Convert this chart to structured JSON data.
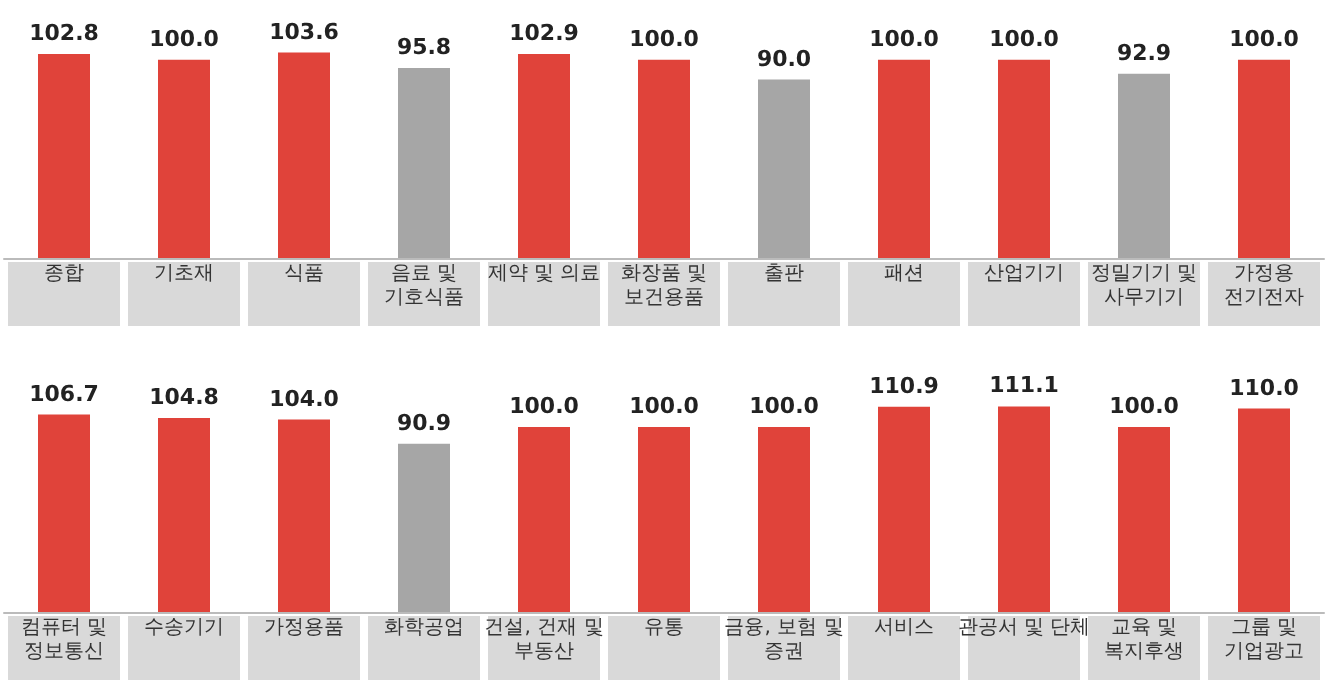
{
  "chart_data": [
    {
      "type": "bar",
      "value_labels": [
        "102.8",
        "100.0",
        "103.6",
        "95.8",
        "102.9",
        "100.0",
        "90.0",
        "100.0",
        "100.0",
        "92.9",
        "100.0"
      ],
      "categories": [
        "종합",
        "기초재",
        "식품",
        "음료 및\n기호식품",
        "제약 및 의료",
        "화장품 및\n보건용품",
        "출판",
        "패션",
        "산업기기",
        "정밀기기 및\n사무기기",
        "가정용\n전기전자"
      ],
      "values": [
        102.8,
        100.0,
        103.6,
        95.8,
        102.9,
        100.0,
        90.0,
        100.0,
        100.0,
        92.9,
        100.0
      ],
      "colors": [
        "#e0433a",
        "#e0433a",
        "#e0433a",
        "#a6a6a6",
        "#e0433a",
        "#e0433a",
        "#a6a6a6",
        "#e0433a",
        "#e0433a",
        "#a6a6a6",
        "#e0433a"
      ]
    },
    {
      "type": "bar",
      "value_labels": [
        "106.7",
        "104.8",
        "104.0",
        "90.9",
        "100.0",
        "100.0",
        "100.0",
        "110.9",
        "111.1",
        "100.0",
        "110.0"
      ],
      "categories": [
        "컴퓨터 및\n정보통신",
        "수송기기",
        "가정용품",
        "화학공업",
        "건설, 건재 및\n부동산",
        "유통",
        "금융, 보험 및\n증권",
        "서비스",
        "관공서 및 단체",
        "교육 및\n복지후생",
        "그룹 및\n기업광고"
      ],
      "values": [
        106.7,
        104.8,
        104.0,
        90.9,
        100.0,
        100.0,
        100.0,
        110.9,
        111.1,
        100.0,
        110.0
      ],
      "colors": [
        "#e0433a",
        "#e0433a",
        "#e0433a",
        "#a6a6a6",
        "#e0433a",
        "#e0433a",
        "#e0433a",
        "#e0433a",
        "#e0433a",
        "#e0433a",
        "#e0433a"
      ]
    }
  ]
}
